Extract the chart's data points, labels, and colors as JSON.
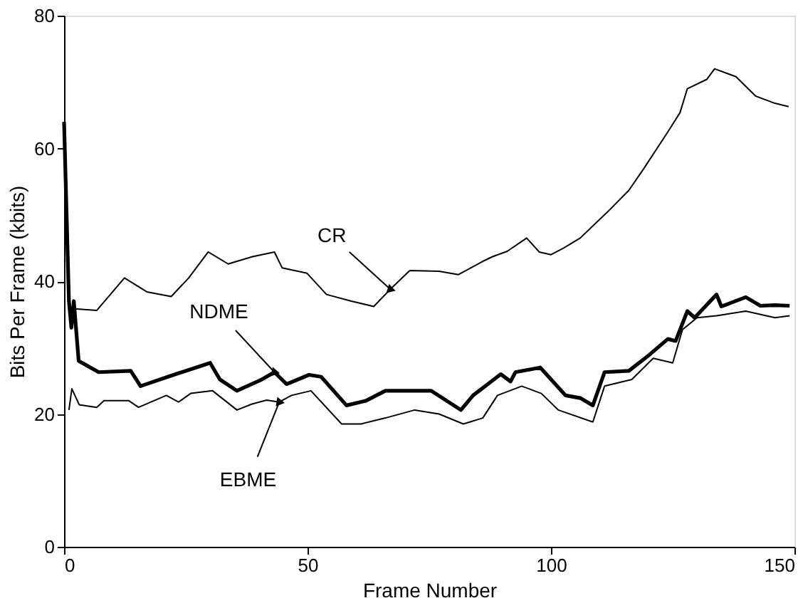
{
  "chart_data": {
    "type": "line",
    "xlabel": "Frame Number",
    "ylabel": "Bits Per Frame (kbits)",
    "xlim": [
      0,
      150
    ],
    "ylim": [
      0,
      80
    ],
    "xticks": [
      0,
      50,
      100,
      150
    ],
    "yticks": [
      0,
      20,
      40,
      60,
      80
    ],
    "grid": false,
    "marker": "none",
    "line_style": "solid",
    "series": [
      {
        "name": "CR",
        "color": "#000000",
        "x": [
          1.2,
          6.7,
          12.4,
          17,
          22,
          25.6,
          29.6,
          33.7,
          38.7,
          43.2,
          44.8,
          49.9,
          53.9,
          59,
          63.6,
          67,
          71,
          77,
          81,
          86,
          88,
          91,
          95,
          97.6,
          100,
          102.6,
          106,
          111.7,
          116,
          119,
          124,
          126.5,
          128,
          132,
          133.6,
          138,
          142,
          146,
          148.8
        ],
        "values": [
          35.9,
          35.6,
          40.5,
          38.4,
          37.7,
          40.5,
          44.4,
          42.6,
          43.7,
          44.4,
          42,
          41.2,
          38,
          37,
          36.2,
          38.8,
          41.6,
          41.5,
          41,
          43,
          43.7,
          44.5,
          46.5,
          44.4,
          44,
          45,
          46.5,
          50.5,
          53.7,
          56.9,
          62.5,
          65.4,
          69,
          70.4,
          72,
          70.8,
          67.9,
          66.8,
          66.3
        ]
      },
      {
        "name": "NDME",
        "color": "#000000",
        "x": [
          0,
          1,
          1.5,
          2,
          3,
          7.1,
          13.7,
          15.7,
          21.3,
          30,
          32,
          35.5,
          40.6,
          43.2,
          45.7,
          50.3,
          52.8,
          58,
          62,
          66,
          72,
          75.4,
          81.5,
          84,
          89.7,
          91.7,
          92.7,
          97.8,
          103,
          106,
          108.6,
          111,
          116,
          120,
          124,
          125.6,
          128,
          129.5,
          134,
          135,
          140,
          143,
          146,
          149
        ],
        "values": [
          64,
          37,
          33,
          37,
          28,
          26.3,
          26.5,
          24.2,
          25.6,
          27.7,
          25.2,
          23.5,
          25.2,
          26.3,
          24.5,
          25.9,
          25.6,
          21.3,
          22,
          23.5,
          23.5,
          23.5,
          20.6,
          22.8,
          26,
          24.9,
          26.3,
          27,
          22.8,
          22.4,
          21.3,
          26.3,
          26.5,
          28.8,
          31.3,
          31,
          35.5,
          34.5,
          38,
          36.2,
          37.6,
          36.3,
          36.4,
          36.3
        ]
      },
      {
        "name": "EBME",
        "color": "#000000",
        "x": [
          1,
          1.6,
          3.1,
          6.7,
          8.2,
          13.3,
          15.3,
          21,
          23.5,
          26,
          30.5,
          35.5,
          38.6,
          41.6,
          44.2,
          46.7,
          50.7,
          57,
          61,
          66,
          72,
          77,
          82,
          86,
          89,
          94,
          98,
          101.5,
          108.6,
          111,
          116.6,
          121,
          125,
          127,
          130,
          134,
          140,
          146,
          149
        ],
        "values": [
          20.6,
          23.8,
          21.4,
          21,
          22,
          22,
          21,
          22.8,
          21.8,
          23.1,
          23.5,
          20.6,
          21.5,
          22.1,
          21.8,
          22.8,
          23.5,
          18.5,
          18.5,
          19.4,
          20.6,
          20,
          18.5,
          19.4,
          22.8,
          24.2,
          23.1,
          20.6,
          18.8,
          24.2,
          25.2,
          28.4,
          27.7,
          32.7,
          34.5,
          34.8,
          35.5,
          34.5,
          34.8
        ]
      }
    ]
  }
}
